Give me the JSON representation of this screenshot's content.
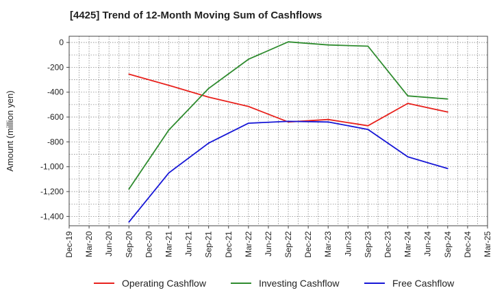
{
  "chart_data": {
    "type": "line",
    "title": "[4425]  Trend of 12-Month Moving Sum of Cashflows",
    "ylabel": "Amount (million yen)",
    "xlabel": "",
    "categories": [
      "Dec-19",
      "Mar-20",
      "Jun-20",
      "Sep-20",
      "Dec-20",
      "Mar-21",
      "Jun-21",
      "Sep-21",
      "Dec-21",
      "Mar-22",
      "Jun-22",
      "Sep-22",
      "Dec-22",
      "Mar-23",
      "Jun-23",
      "Sep-23",
      "Dec-23",
      "Mar-24",
      "Jun-24",
      "Sep-24",
      "Dec-24",
      "Mar-25"
    ],
    "yticks": [
      0,
      -200,
      -400,
      -600,
      -800,
      -1000,
      -1200,
      -1400
    ],
    "ytick_labels": [
      "0",
      "-200",
      "-400",
      "-600",
      "-800",
      "-1,000",
      "-1,200",
      "-1,400"
    ],
    "ylim": [
      -1475,
      50
    ],
    "grid": true,
    "legend_position": "bottom",
    "series": [
      {
        "name": "Operating Cashflow",
        "color": "#e8201b",
        "values": [
          null,
          null,
          null,
          -255,
          null,
          -345,
          null,
          -440,
          null,
          -515,
          null,
          -640,
          null,
          -620,
          null,
          -670,
          null,
          -490,
          null,
          -560,
          null,
          null
        ]
      },
      {
        "name": "Investing Cashflow",
        "color": "#2e8b2e",
        "values": [
          null,
          null,
          null,
          -1180,
          null,
          -705,
          null,
          -370,
          null,
          -135,
          null,
          5,
          null,
          -20,
          null,
          -30,
          null,
          -430,
          null,
          -455,
          null,
          null
        ]
      },
      {
        "name": "Free Cashflow",
        "color": "#1515d6",
        "values": [
          null,
          null,
          null,
          -1445,
          null,
          -1050,
          null,
          -810,
          null,
          -650,
          null,
          -635,
          null,
          -640,
          null,
          -700,
          null,
          -920,
          null,
          -1015,
          null,
          null
        ]
      }
    ]
  }
}
